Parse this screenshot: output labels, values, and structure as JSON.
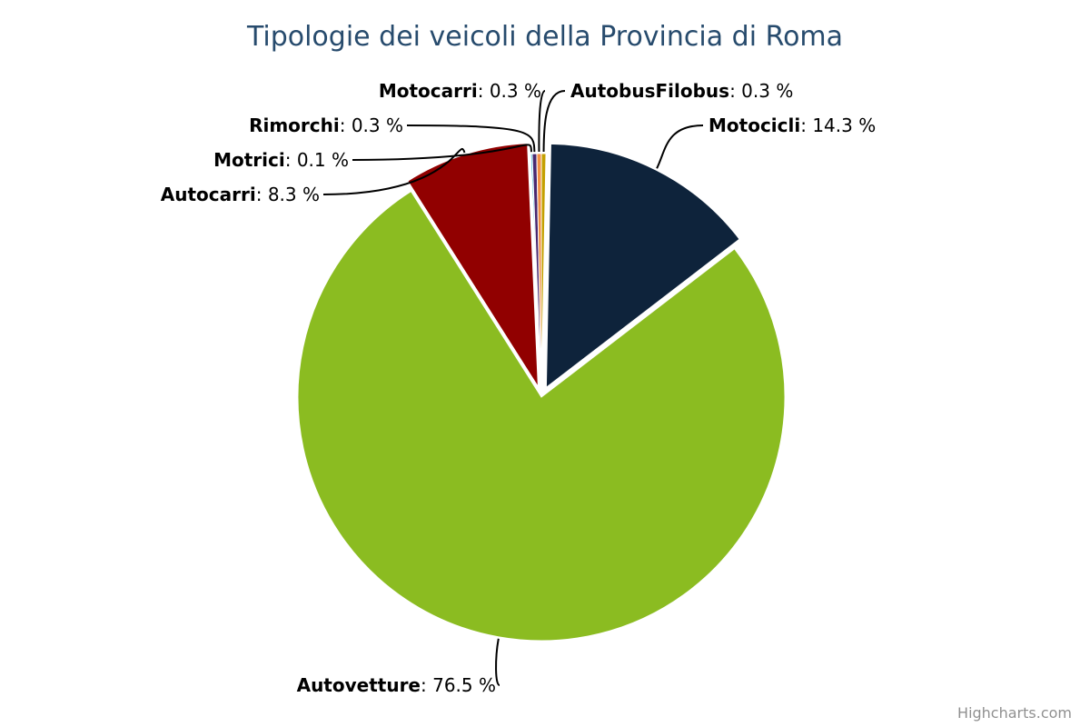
{
  "chart_data": {
    "type": "pie",
    "title": "Tipologie dei veicoli della Provincia di Roma",
    "value_suffix": " %",
    "slices": [
      {
        "name": "AutobusFilobus",
        "value": 0.3,
        "color": "#c4a000",
        "label_side": "right",
        "exploded": false
      },
      {
        "name": "Motocicli",
        "value": 14.3,
        "color": "#0e233b",
        "label_side": "right",
        "exploded": true
      },
      {
        "name": "Autovetture",
        "value": 76.5,
        "color": "#8bbc21",
        "label_side": "left",
        "exploded": false
      },
      {
        "name": "Autocarri",
        "value": 8.3,
        "color": "#910000",
        "label_side": "left",
        "exploded": true
      },
      {
        "name": "Motrici",
        "value": 0.1,
        "color": "#1aadce",
        "label_side": "left",
        "exploded": false
      },
      {
        "name": "Rimorchi",
        "value": 0.3,
        "color": "#492970",
        "label_side": "left",
        "exploded": false
      },
      {
        "name": "Motocarri",
        "value": 0.3,
        "color": "#f28f43",
        "label_side": "left",
        "exploded": false
      }
    ]
  },
  "credits": "Highcharts.com"
}
